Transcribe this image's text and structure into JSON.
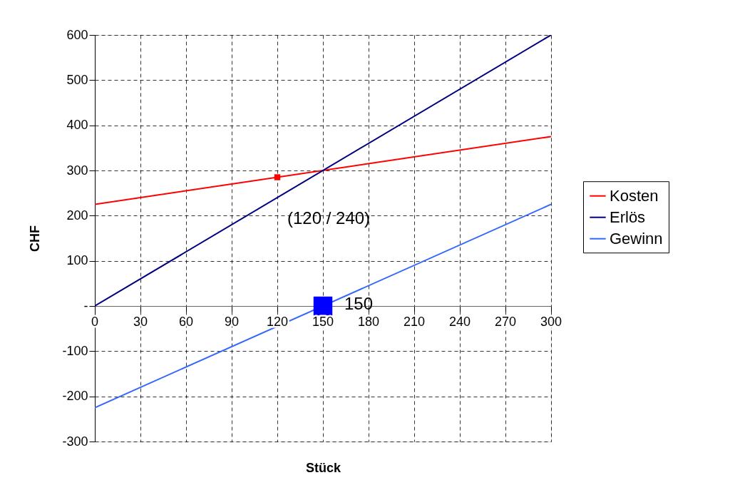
{
  "chart_data": {
    "type": "line",
    "xlabel": "Stück",
    "ylabel": "CHF",
    "x": [
      0,
      300
    ],
    "series": [
      {
        "name": "Kosten",
        "color": "#ff0000",
        "values": [
          225,
          375
        ]
      },
      {
        "name": "Erlös",
        "color": "#000080",
        "values": [
          0,
          600
        ]
      },
      {
        "name": "Gewinn",
        "color": "#3366ff",
        "values": [
          -225,
          225
        ]
      },
      {
        "type": "scatter",
        "marker": "square",
        "color": "#ff0000",
        "x": [
          120
        ],
        "values": [
          285
        ]
      },
      {
        "type": "scatter",
        "marker": "square",
        "color": "#0000ff",
        "x": [
          150
        ],
        "values": [
          0
        ]
      }
    ],
    "annotations": [
      {
        "text": "(120 / 240)",
        "x": 120,
        "y": 240
      },
      {
        "text": "150",
        "x": 150,
        "y": 0
      }
    ],
    "xlim": [
      0,
      300
    ],
    "xticks": [
      0,
      30,
      60,
      90,
      120,
      150,
      180,
      210,
      240,
      270,
      300
    ],
    "ylim": [
      -300,
      600
    ],
    "yticks": [
      -300,
      -200,
      -100,
      {
        "value": 0,
        "label": "-"
      },
      100,
      200,
      300,
      400,
      500,
      600
    ],
    "grid": true,
    "legend": "right",
    "line_style": "solid"
  }
}
